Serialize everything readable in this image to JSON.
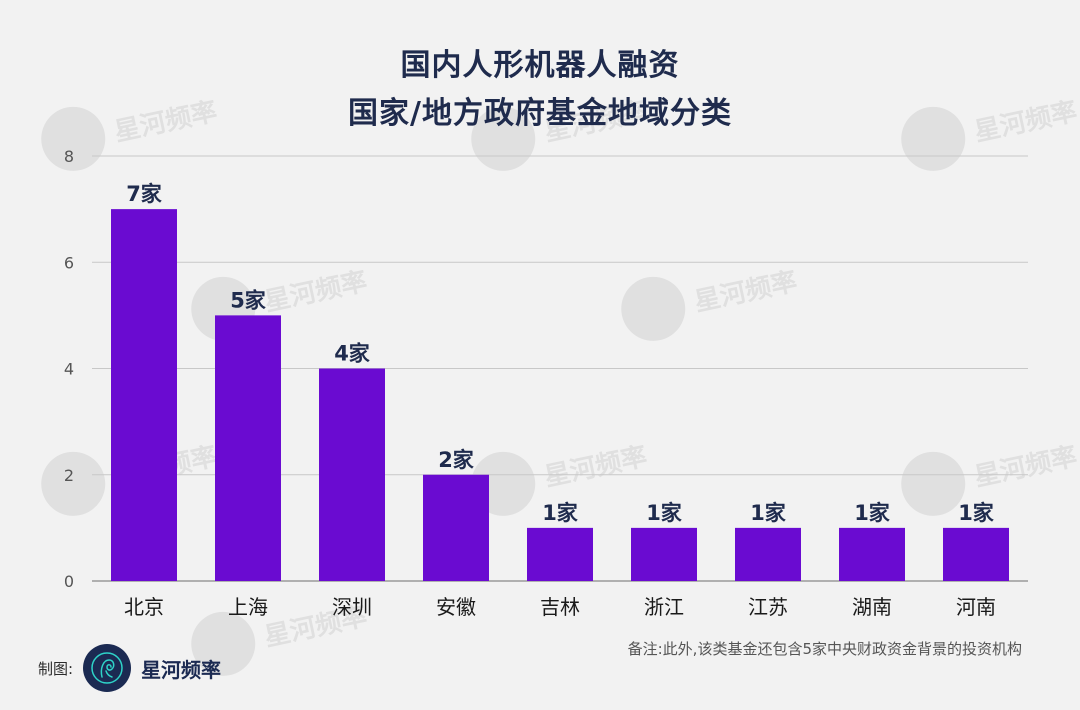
{
  "title_line1": "国内人形机器人融资",
  "title_line2": "国家/地方政府基金地域分类",
  "footer": {
    "made_by": "制图:",
    "brand": "星河频率",
    "note": "备注:此外,该类基金还包含5家中央财政资金背景的投资机构"
  },
  "watermark_text": "星河频率",
  "colors": {
    "bar": "#6a0bd1",
    "grid": "#c8c8c8",
    "axis_text": "#555555",
    "label_text": "#1f2b4d",
    "background": "#f2f2f2"
  },
  "chart_data": {
    "type": "bar",
    "categories": [
      "北京",
      "上海",
      "深圳",
      "安徽",
      "吉林",
      "浙江",
      "江苏",
      "湖南",
      "河南"
    ],
    "values": [
      7,
      5,
      4,
      2,
      1,
      1,
      1,
      1,
      1
    ],
    "data_labels": [
      "7家",
      "5家",
      "4家",
      "2家",
      "1家",
      "1家",
      "1家",
      "1家",
      "1家"
    ],
    "yticks": [
      0,
      2,
      4,
      6,
      8
    ],
    "ylim": [
      0,
      8
    ],
    "grid": true,
    "legend": "none"
  }
}
